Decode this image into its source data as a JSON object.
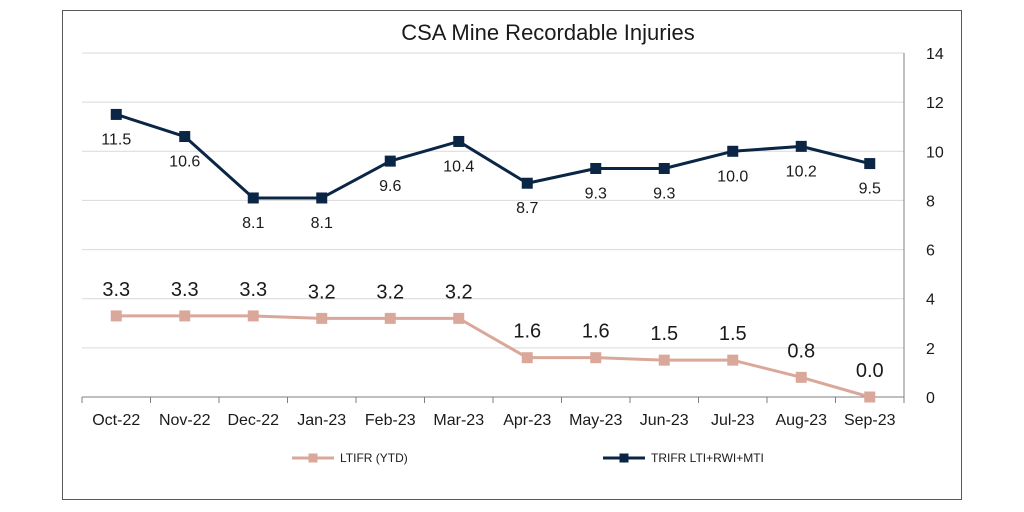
{
  "chart_data": {
    "type": "line",
    "title": "CSA Mine Recordable Injuries",
    "categories": [
      "Oct-22",
      "Nov-22",
      "Dec-22",
      "Jan-23",
      "Feb-23",
      "Mar-23",
      "Apr-23",
      "May-23",
      "Jun-23",
      "Jul-23",
      "Aug-23",
      "Sep-23"
    ],
    "ylim": [
      0,
      14
    ],
    "yticks": [
      "0",
      "2",
      "4",
      "6",
      "8",
      "10",
      "12",
      "14"
    ],
    "grid": true,
    "legend_position": "bottom",
    "series": [
      {
        "name": "LTIFR (YTD)",
        "color": "#d9a89a",
        "values": [
          3.3,
          3.3,
          3.3,
          3.2,
          3.2,
          3.2,
          1.6,
          1.6,
          1.5,
          1.5,
          0.8,
          0.0
        ],
        "labels": [
          "3.3",
          "3.3",
          "3.3",
          "3.2",
          "3.2",
          "3.2",
          "1.6",
          "1.6",
          "1.5",
          "1.5",
          "0.8",
          "0.0"
        ]
      },
      {
        "name": "TRIFR LTI+RWI+MTI",
        "color": "#0b2545",
        "values": [
          11.5,
          10.6,
          8.1,
          8.1,
          9.6,
          10.4,
          8.7,
          9.3,
          9.3,
          10.0,
          10.2,
          9.5
        ],
        "labels": [
          "11.5",
          "10.6",
          "8.1",
          "8.1",
          "9.6",
          "10.4",
          "8.7",
          "9.3",
          "9.3",
          "10.0",
          "10.2",
          "9.5"
        ]
      }
    ]
  }
}
